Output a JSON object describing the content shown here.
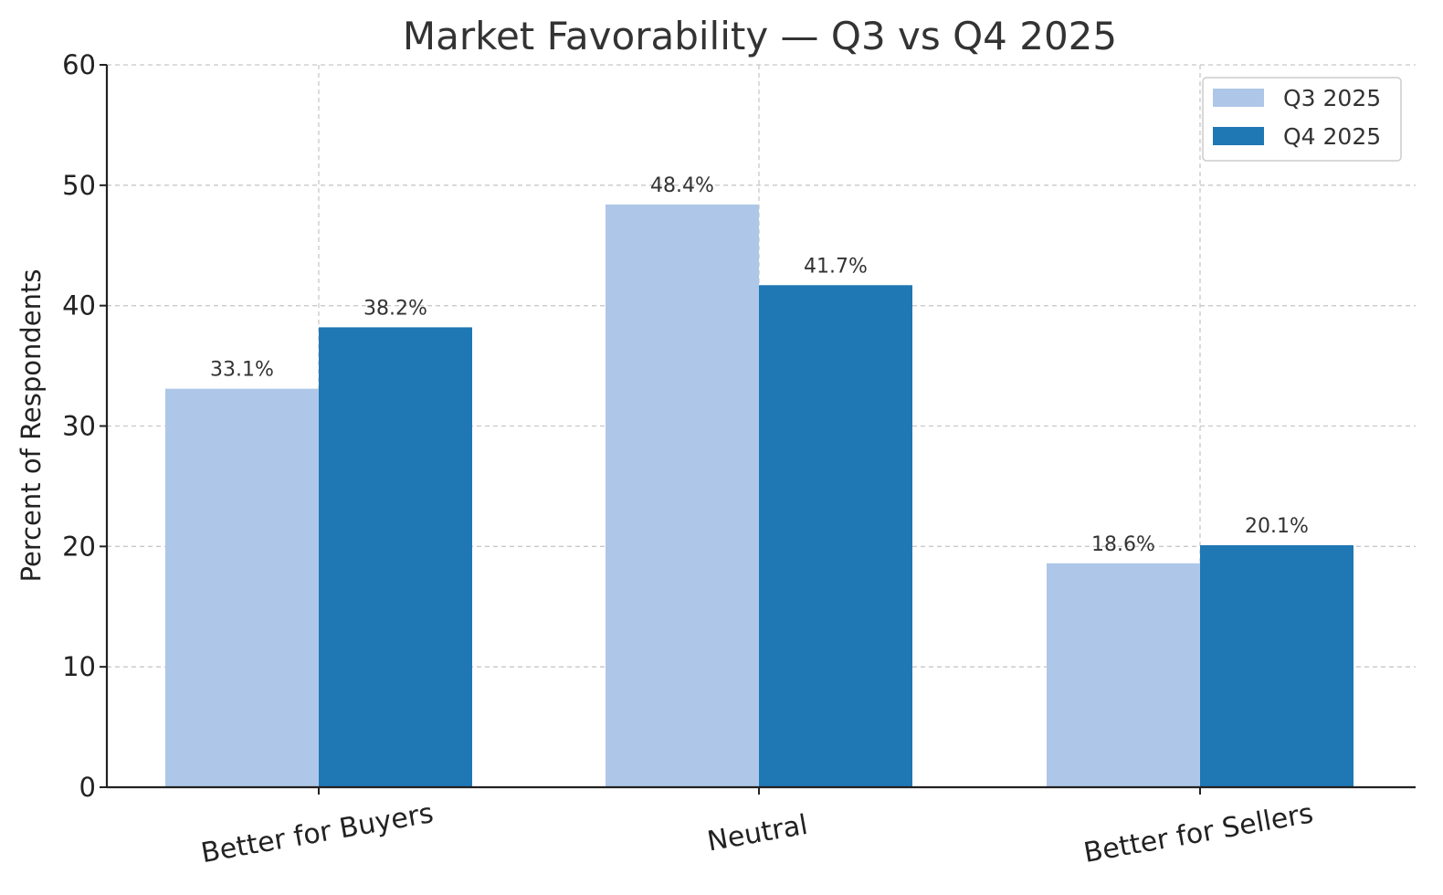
{
  "chart_data": {
    "type": "bar",
    "title": "Market Favorability — Q3 vs Q4 2025",
    "xlabel": "",
    "ylabel": "Percent of Respondents",
    "categories": [
      "Better for Buyers",
      "Neutral",
      "Better for Sellers"
    ],
    "series": [
      {
        "name": "Q3 2025",
        "values": [
          33.1,
          48.4,
          18.6
        ],
        "color": "#aec7e8",
        "labels": [
          "33.1%",
          "48.4%",
          "18.6%"
        ]
      },
      {
        "name": "Q4 2025",
        "values": [
          38.2,
          41.7,
          20.1
        ],
        "color": "#1f77b4",
        "labels": [
          "38.2%",
          "41.7%",
          "20.1%"
        ]
      }
    ],
    "ylim": [
      0,
      60
    ],
    "yticks": [
      0,
      10,
      20,
      30,
      40,
      50,
      60
    ],
    "ytick_labels": [
      "0",
      "10",
      "20",
      "30",
      "40",
      "50",
      "60"
    ],
    "grid": true,
    "legend_position": "top-right"
  }
}
